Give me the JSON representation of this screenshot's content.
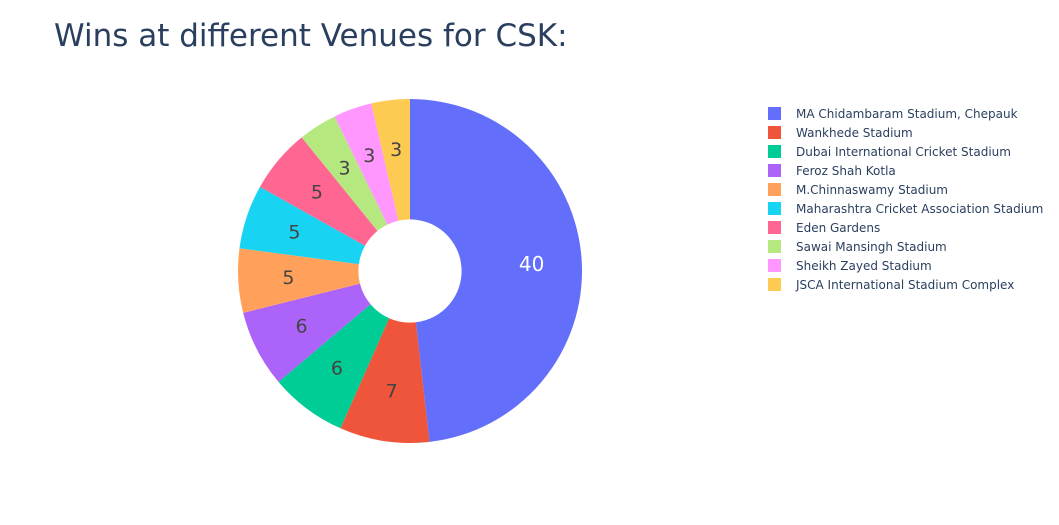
{
  "chart_data": {
    "type": "pie",
    "title": "Wins at different Venues for CSK:",
    "hole": 0.3,
    "labels": [
      "MA Chidambaram Stadium, Chepauk",
      "Wankhede Stadium",
      "Dubai International Cricket Stadium",
      "Feroz Shah Kotla",
      "M.Chinnaswamy Stadium",
      "Maharashtra Cricket Association Stadium",
      "Eden Gardens",
      "Sawai Mansingh Stadium",
      "Sheikh Zayed Stadium",
      "JSCA International Stadium Complex"
    ],
    "values": [
      40,
      7,
      6,
      6,
      5,
      5,
      5,
      3,
      3,
      3
    ],
    "colors": [
      "#636efa",
      "#ef553b",
      "#00cc96",
      "#ab63fa",
      "#ffa15a",
      "#19d3f3",
      "#ff6692",
      "#b6e880",
      "#ff97ff",
      "#fecb52"
    ],
    "legend_position": "right",
    "text_info": "value"
  }
}
